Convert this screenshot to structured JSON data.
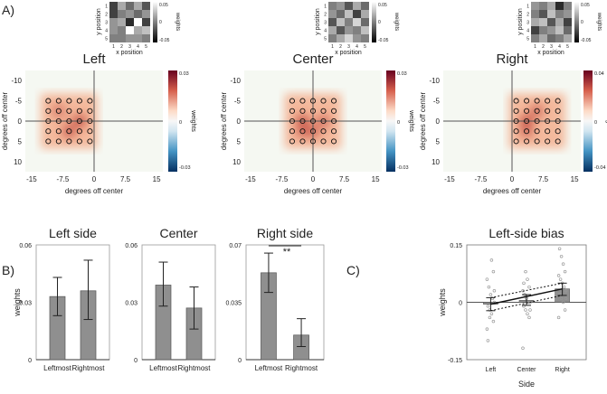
{
  "panel_labels": {
    "a": "A)",
    "b": "B)",
    "c": "C)"
  },
  "chart_data": [
    {
      "type": "heatmap",
      "title": "Left",
      "xlabel": "degrees off center",
      "ylabel": "degrees off center",
      "xticks": [
        "-15",
        "-7.5",
        "0",
        "7.5",
        "15"
      ],
      "yticks": [
        "-10",
        "-5",
        "0",
        "5",
        "10"
      ],
      "colorbar": {
        "label": "weights",
        "ticks": [
          "0.03",
          "0",
          "-0.03"
        ],
        "range": [
          -0.03,
          0.03
        ]
      },
      "grid_x": [
        -11,
        -8.5,
        -6,
        -3.5,
        -1
      ],
      "grid_y": [
        -5,
        -2.5,
        0,
        2.5,
        5
      ],
      "hotspots": [
        [
          -3.5,
          0,
          1
        ],
        [
          -6,
          2.5,
          0.9
        ],
        [
          -8.5,
          -2.5,
          0.6
        ]
      ],
      "inset": {
        "xlabel": "x position",
        "ylabel": "y position",
        "colorbar_label": "weights",
        "ticks": [
          "1",
          "2",
          "3",
          "4",
          "5"
        ],
        "cb_ticks": [
          "0.05",
          "0",
          "-0.05"
        ],
        "values": [
          [
            -0.03,
            0.02,
            -0.01,
            0.02,
            -0.02
          ],
          [
            -0.03,
            0.0,
            0.01,
            -0.01,
            0.01
          ],
          [
            0.01,
            0.02,
            -0.04,
            0.06,
            -0.03
          ],
          [
            0.01,
            0.0,
            0.06,
            0.02,
            0.03
          ],
          [
            0.0,
            0.0,
            0.01,
            0.01,
            0.0
          ]
        ]
      }
    },
    {
      "type": "heatmap",
      "title": "Center",
      "xlabel": "degrees off center",
      "ylabel": "degrees off center",
      "xticks": [
        "-15",
        "-7.5",
        "0",
        "7.5",
        "15"
      ],
      "yticks": [
        "-10",
        "-5",
        "0",
        "5",
        "10"
      ],
      "colorbar": {
        "label": "weights",
        "ticks": [
          "0.03",
          "0",
          "-0.03"
        ],
        "range": [
          -0.03,
          0.03
        ]
      },
      "grid_x": [
        -5,
        -2.5,
        0,
        2.5,
        5
      ],
      "grid_y": [
        -5,
        -2.5,
        0,
        2.5,
        5
      ],
      "hotspots": [
        [
          -2.5,
          0,
          1
        ],
        [
          0,
          2.5,
          0.8
        ],
        [
          2.5,
          0,
          0.7
        ],
        [
          -2.5,
          2.5,
          0.7
        ]
      ],
      "inset": {
        "xlabel": "x position",
        "ylabel": "y position",
        "colorbar_label": "weights",
        "ticks": [
          "1",
          "2",
          "3",
          "4",
          "5"
        ],
        "cb_ticks": [
          "0.05",
          "0",
          "-0.05"
        ],
        "values": [
          [
            0.0,
            0.01,
            -0.02,
            0.02,
            -0.01
          ],
          [
            0.01,
            -0.01,
            0.03,
            -0.03,
            0.02
          ],
          [
            -0.02,
            0.03,
            0.0,
            0.04,
            -0.01
          ],
          [
            0.02,
            -0.02,
            0.01,
            0.0,
            0.03
          ],
          [
            0.0,
            0.02,
            0.04,
            0.01,
            0.0
          ]
        ]
      }
    },
    {
      "type": "heatmap",
      "title": "Right",
      "xlabel": "degrees off center",
      "ylabel": "degrees off center",
      "xticks": [
        "-15",
        "-7.5",
        "0",
        "7.5",
        "15"
      ],
      "yticks": [
        "-10",
        "-5",
        "0",
        "5",
        "10"
      ],
      "colorbar": {
        "label": "weights",
        "ticks": [
          "0.04",
          "0",
          "-0.04"
        ],
        "range": [
          -0.04,
          0.04
        ]
      },
      "grid_x": [
        1,
        3.5,
        6,
        8.5,
        11
      ],
      "grid_y": [
        -5,
        -2.5,
        0,
        2.5,
        5
      ],
      "hotspots": [
        [
          3.5,
          0,
          1
        ],
        [
          6,
          -2.5,
          0.7
        ],
        [
          3.5,
          2.5,
          0.7
        ]
      ],
      "inset": {
        "xlabel": "x position",
        "ylabel": "y position",
        "colorbar_label": "weights",
        "ticks": [
          "1",
          "2",
          "3",
          "4",
          "5"
        ],
        "cb_ticks": [
          "0.05",
          "0",
          "-0.05"
        ],
        "values": [
          [
            0.01,
            0.0,
            0.02,
            -0.04,
            0.0
          ],
          [
            0.0,
            -0.02,
            0.03,
            0.0,
            0.01
          ],
          [
            0.02,
            0.03,
            -0.02,
            0.02,
            -0.03
          ],
          [
            -0.03,
            0.0,
            0.01,
            0.03,
            -0.01
          ],
          [
            0.0,
            0.02,
            -0.01,
            0.0,
            0.02
          ]
        ]
      }
    },
    {
      "type": "bar",
      "title": "Left side",
      "categories": [
        "Leftmost",
        "Rightmost"
      ],
      "values": [
        0.033,
        0.036
      ],
      "errors": [
        [
          0.023,
          0.043
        ],
        [
          0.021,
          0.052
        ]
      ],
      "ylabel": "weights",
      "ylim": [
        0,
        0.06
      ],
      "yticks": [
        "0",
        "0.03",
        "0.06"
      ]
    },
    {
      "type": "bar",
      "title": "Center",
      "categories": [
        "Leftmost",
        "Rightmost"
      ],
      "values": [
        0.039,
        0.027
      ],
      "errors": [
        [
          0.028,
          0.051
        ],
        [
          0.016,
          0.038
        ]
      ],
      "ylabel": "",
      "ylim": [
        0,
        0.06
      ],
      "yticks": [
        "0",
        "0.03",
        "0.06"
      ]
    },
    {
      "type": "bar",
      "title": "Right side",
      "categories": [
        "Leftmost",
        "Rightmost"
      ],
      "values": [
        0.053,
        0.015
      ],
      "errors": [
        [
          0.041,
          0.065
        ],
        [
          0.008,
          0.025
        ]
      ],
      "ylabel": "",
      "ylim": [
        0,
        0.07
      ],
      "yticks": [
        "0",
        "0.035",
        "0.07"
      ],
      "annotation": "**"
    },
    {
      "type": "bar",
      "title": "Left-side bias",
      "categories": [
        "Left",
        "Center",
        "Right"
      ],
      "values": [
        -0.005,
        0.005,
        0.035
      ],
      "errors": [
        [
          -0.022,
          0.012
        ],
        [
          -0.008,
          0.02
        ],
        [
          0.018,
          0.05
        ]
      ],
      "xlabel": "Side",
      "ylabel": "weights",
      "ylim": [
        -0.15,
        0.15
      ],
      "yticks": [
        "-0.15",
        "0",
        "0.15"
      ],
      "points": [
        [
          -0.07,
          -0.05,
          -0.03,
          -0.02,
          -0.01,
          0.0,
          0.01,
          0.02,
          0.04,
          0.06,
          0.08,
          0.11,
          -0.04,
          -0.1,
          0.03
        ],
        [
          -0.12,
          -0.04,
          -0.03,
          -0.02,
          -0.01,
          0.0,
          0.0,
          0.01,
          0.02,
          0.03,
          0.04,
          0.06,
          0.08,
          0.05,
          -0.02
        ],
        [
          -0.04,
          -0.02,
          0.0,
          0.01,
          0.02,
          0.03,
          0.04,
          0.05,
          0.06,
          0.07,
          0.08,
          0.1,
          0.12,
          0.14,
          0.01
        ]
      ]
    }
  ]
}
